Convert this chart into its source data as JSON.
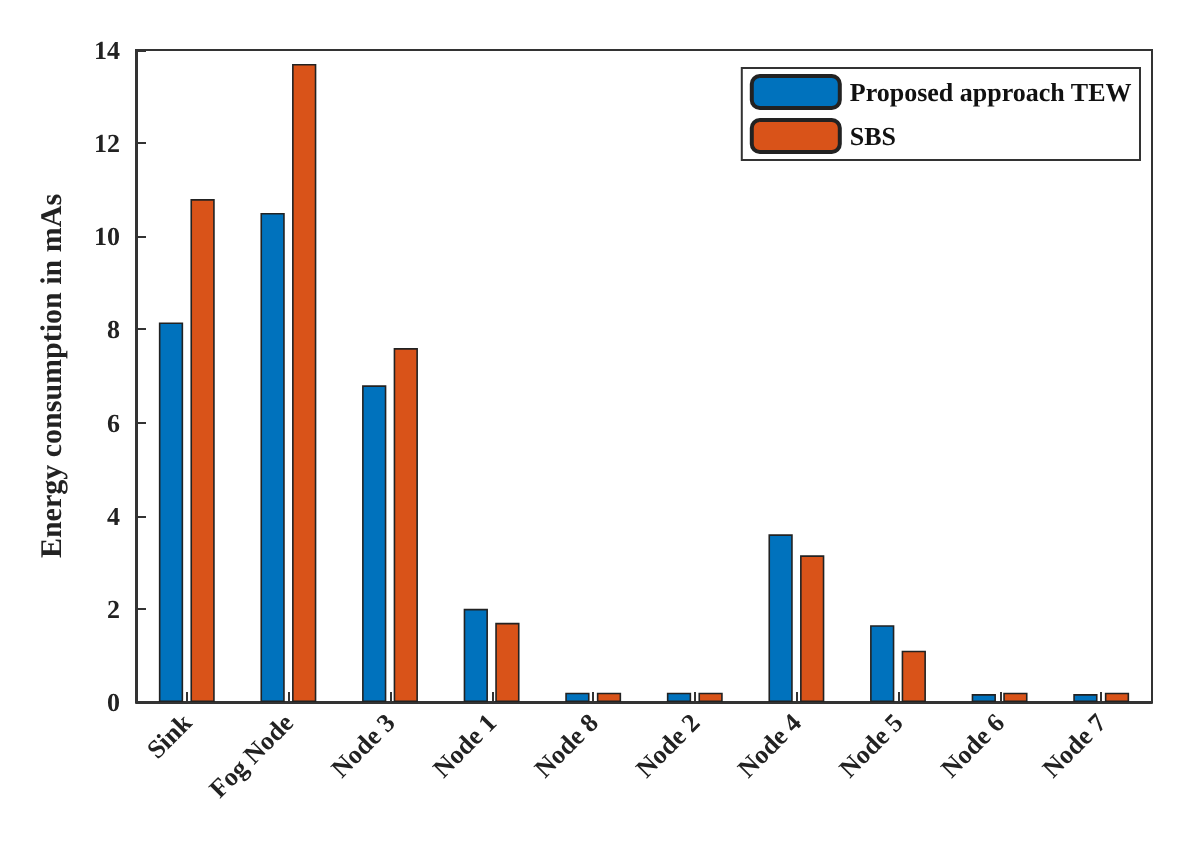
{
  "chart_data": {
    "type": "bar",
    "ylabel": "Energy consumption in mAs",
    "categories": [
      "Sink",
      "Fog Node",
      "Node 3",
      "Node 1",
      "Node 8",
      "Node 2",
      "Node 4",
      "Node 5",
      "Node 6",
      "Node 7"
    ],
    "series": [
      {
        "name": "Proposed approach TEW",
        "color": "#0072bd",
        "values": [
          8.15,
          10.5,
          6.8,
          2.0,
          0.2,
          0.2,
          3.6,
          1.65,
          0.17,
          0.17
        ]
      },
      {
        "name": "SBS",
        "color": "#d95319",
        "values": [
          10.8,
          13.7,
          7.6,
          1.7,
          0.2,
          0.2,
          3.15,
          1.1,
          0.2,
          0.2
        ]
      }
    ],
    "ylim": [
      0,
      14
    ],
    "yticks": [
      0,
      2,
      4,
      6,
      8,
      10,
      12,
      14
    ],
    "grid": false,
    "legend": "top right"
  }
}
